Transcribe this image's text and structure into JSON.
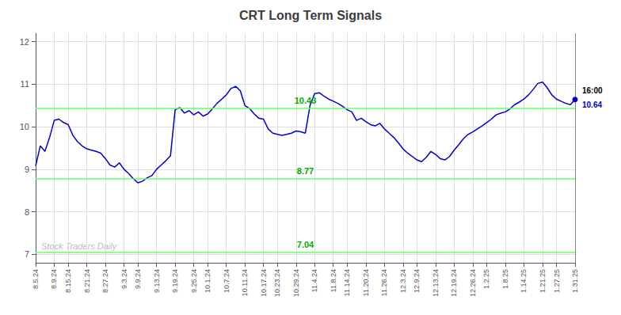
{
  "chart_data": {
    "type": "line",
    "title": "CRT Long Term Signals",
    "color": "#0000cc",
    "categories": [
      "8.5.24",
      null,
      null,
      null,
      "8.9.24",
      null,
      null,
      "8.15.24",
      null,
      null,
      null,
      "8.21.24",
      null,
      null,
      null,
      "8.27.24",
      null,
      null,
      null,
      "9.3.24",
      null,
      null,
      "9.9.24",
      null,
      null,
      null,
      "9.13.24",
      null,
      null,
      null,
      "9.19.24",
      null,
      null,
      null,
      "9.25.24",
      null,
      null,
      "10.1.24",
      null,
      null,
      null,
      "10.7.24",
      null,
      null,
      null,
      "10.11.24",
      null,
      null,
      null,
      "10.17.24",
      null,
      null,
      "10.23.24",
      null,
      null,
      null,
      "10.29.24",
      null,
      null,
      null,
      "11.4.24",
      null,
      null,
      null,
      "11.8.24",
      null,
      null,
      "11.14.24",
      null,
      null,
      null,
      "11.20.24",
      null,
      null,
      null,
      "11.26.24",
      null,
      null,
      null,
      "12.3.24",
      null,
      null,
      "12.9.24",
      null,
      null,
      null,
      "12.13.24",
      null,
      null,
      null,
      "12.19.24",
      null,
      null,
      null,
      "12.26.24",
      null,
      null,
      "1.2.25",
      null,
      null,
      null,
      "1.8.25",
      null,
      null,
      null,
      "1.14.25",
      null,
      null,
      null,
      "1.21.25",
      null,
      null,
      "1.27.25",
      null,
      null,
      null,
      "1.31.25"
    ],
    "values": [
      9.08,
      9.55,
      9.42,
      9.75,
      10.15,
      10.18,
      10.1,
      10.05,
      9.8,
      9.65,
      9.55,
      9.48,
      9.45,
      9.42,
      9.38,
      9.25,
      9.1,
      9.05,
      9.15,
      9.0,
      8.9,
      8.78,
      8.68,
      8.72,
      8.8,
      8.85,
      9.0,
      9.1,
      9.2,
      9.32,
      10.4,
      10.45,
      10.32,
      10.38,
      10.28,
      10.35,
      10.25,
      10.3,
      10.42,
      10.55,
      10.65,
      10.75,
      10.9,
      10.95,
      10.85,
      10.5,
      10.43,
      10.3,
      10.2,
      10.18,
      9.95,
      9.85,
      9.82,
      9.8,
      9.82,
      9.85,
      9.9,
      9.88,
      9.85,
      10.5,
      10.78,
      10.8,
      10.72,
      10.65,
      10.6,
      10.55,
      10.48,
      10.4,
      10.35,
      10.15,
      10.2,
      10.12,
      10.05,
      10.02,
      10.08,
      9.95,
      9.85,
      9.75,
      9.62,
      9.48,
      9.38,
      9.3,
      9.22,
      9.18,
      9.28,
      9.42,
      9.35,
      9.25,
      9.22,
      9.3,
      9.45,
      9.58,
      9.72,
      9.82,
      9.88,
      9.95,
      10.02,
      10.1,
      10.18,
      10.28,
      10.32,
      10.35,
      10.42,
      10.52,
      10.58,
      10.65,
      10.75,
      10.88,
      11.02,
      11.05,
      10.92,
      10.75,
      10.65,
      10.6,
      10.55,
      10.52,
      10.64
    ],
    "ylim": [
      6.8,
      12.2
    ],
    "yticks": [
      7,
      8,
      9,
      10,
      11,
      12
    ],
    "grid": true,
    "hlines": [
      {
        "value": 10.43,
        "label": "10.43",
        "color": "#66ff66",
        "label_color": "#00aa00"
      },
      {
        "value": 8.77,
        "label": "8.77",
        "color": "#66ff66",
        "label_color": "#00aa00"
      },
      {
        "value": 7.04,
        "label": "7.04",
        "color": "#66ff66",
        "label_color": "#00aa00"
      }
    ],
    "last_point": {
      "value": 10.64,
      "label": "10.64",
      "time_label": "16:00"
    },
    "watermark": "Stock Traders Daily",
    "watermark_color": "#bbbbbb"
  }
}
